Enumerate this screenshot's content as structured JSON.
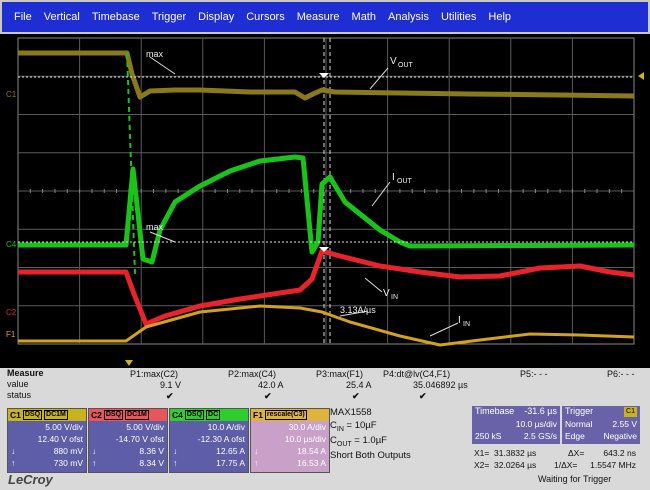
{
  "menu": [
    "File",
    "Vertical",
    "Timebase",
    "Trigger",
    "Display",
    "Cursors",
    "Measure",
    "Math",
    "Analysis",
    "Utilities",
    "Help"
  ],
  "scope": {
    "annotations": {
      "max1": "max",
      "max2": "max",
      "vout_main": "V",
      "vout_sub": "OUT",
      "iout_main": "I",
      "iout_sub": "OUT",
      "vin_main": "V",
      "vin_sub": "IN",
      "slope": "3.13A/µs",
      "iin_main": "I",
      "iin_sub": "IN"
    },
    "channel_markers": {
      "c1": "C1",
      "c4": "C4",
      "c2": "C2",
      "f1": "F1"
    },
    "colors": {
      "c1": "#8a7a1a",
      "c4": "#19c419",
      "c2": "#e8232b",
      "f1": "#d4a21a",
      "grid": "#5a5a5a",
      "cursor": "#dcdcdc"
    }
  },
  "measure": {
    "title": "Measure",
    "row_labels": [
      "value",
      "status"
    ],
    "params": [
      {
        "name": "P1:max(C2)",
        "value": "9.1 V",
        "status": "✔"
      },
      {
        "name": "P2:max(C4)",
        "value": "42.0 A",
        "status": "✔"
      },
      {
        "name": "P3:max(F1)",
        "value": "25.4 A",
        "status": "✔"
      },
      {
        "name": "P4:dt@lv(C4,F1)",
        "value": "35.046892 µs",
        "status": "✔"
      },
      {
        "name": "P5:- - -",
        "value": "",
        "status": ""
      },
      {
        "name": "P6:- - -",
        "value": "",
        "status": ""
      }
    ]
  },
  "channels": [
    {
      "id": "C1",
      "badges": [
        "DSQ",
        "DC1M"
      ],
      "lines": [
        "5.00 V/div",
        "12.40 V ofst",
        "880 mV",
        "730 mV"
      ],
      "arrows": [
        "",
        "",
        "↓",
        "↑"
      ],
      "color": "#c8b21e",
      "body": "#5d5da8"
    },
    {
      "id": "C2",
      "badges": [
        "DSQ",
        "DC1M"
      ],
      "lines": [
        "5.00 V/div",
        "-14.70 V ofst",
        "8.36 V",
        "8.34 V"
      ],
      "arrows": [
        "",
        "",
        "↓",
        "↑"
      ],
      "color": "#e8555b",
      "body": "#5d5da8"
    },
    {
      "id": "C4",
      "badges": [
        "DSQ",
        "DC"
      ],
      "lines": [
        "10.0 A/div",
        "-12.30 A ofst",
        "12.65 A",
        "17.75 A"
      ],
      "arrows": [
        "",
        "",
        "↓",
        "↑"
      ],
      "color": "#2fce2f",
      "body": "#5d5da8"
    },
    {
      "id": "F1",
      "badges": [
        "rescale(C3)"
      ],
      "lines": [
        "30.0 A/div",
        "10.0 µs/div",
        "18.54 A",
        "16.53 A"
      ],
      "arrows": [
        "",
        "",
        "↓",
        "↑"
      ],
      "color": "#e0b43a",
      "body": "#c8a0c8"
    }
  ],
  "info": {
    "part": "MAX1558",
    "cin_main": "C",
    "cin_sub": "IN",
    "cin_val": " = 10µF",
    "cout_main": "C",
    "cout_sub": "OUT",
    "cout_val": " = 1.0µF",
    "note": "Short Both Outputs"
  },
  "timebase": {
    "label": "Timebase",
    "delay": "-31.6 µs",
    "per_div": "10.0 µs/div",
    "samples": "250 kS",
    "rate": "2.5 GS/s"
  },
  "trigger": {
    "label": "Trigger",
    "channel": "C1",
    "mode": "Normal",
    "level": "2.55 V",
    "type": "Edge",
    "slope": "Negative"
  },
  "cursors": {
    "x1_label": "X1=",
    "x1": "31.3832 µs",
    "dx_label": "ΔX=",
    "dx": "643.2 ns",
    "x2_label": "X2=",
    "x2": "32.0264 µs",
    "inv_label": "1/ΔX=",
    "inv": "1.5547 MHz"
  },
  "status": "Waiting for Trigger",
  "brand": "LeCroy"
}
